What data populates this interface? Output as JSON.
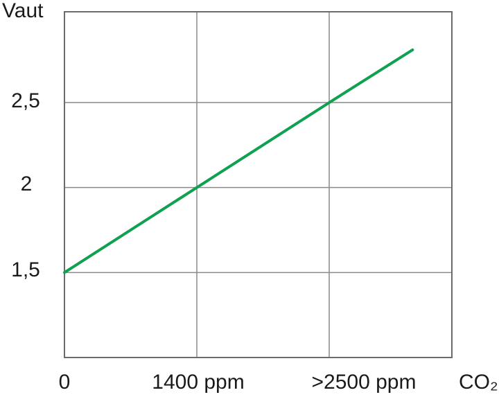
{
  "chart_data": {
    "type": "line",
    "title": "",
    "x_axis": {
      "label": "CO₂",
      "tick_labels": [
        "0",
        "1400 ppm",
        ">2500 ppm"
      ],
      "tick_units": [
        0,
        1,
        2
      ],
      "grid_units": [
        1,
        2
      ]
    },
    "y_axis": {
      "label": "Vaut",
      "tick_labels": [
        "2,5",
        "2",
        "1,5"
      ],
      "tick_values": [
        2.5,
        2,
        1.5
      ],
      "range": [
        1.0,
        3.034
      ]
    },
    "series": [
      {
        "name": "vaut-vs-co2",
        "color": "#0fa050",
        "stroke_width": 4,
        "points": [
          {
            "x": 0,
            "y": 1.5
          },
          {
            "x": 1,
            "y": 2.0
          },
          {
            "x": 2,
            "y": 2.5
          },
          {
            "x": 2.63,
            "y": 2.81
          }
        ]
      }
    ],
    "grid": true,
    "legend": false,
    "colors": {
      "grid": "#8a8a8a",
      "border": "#6b6b6b",
      "text": "#1a1a1a",
      "background": "#ffffff"
    }
  }
}
